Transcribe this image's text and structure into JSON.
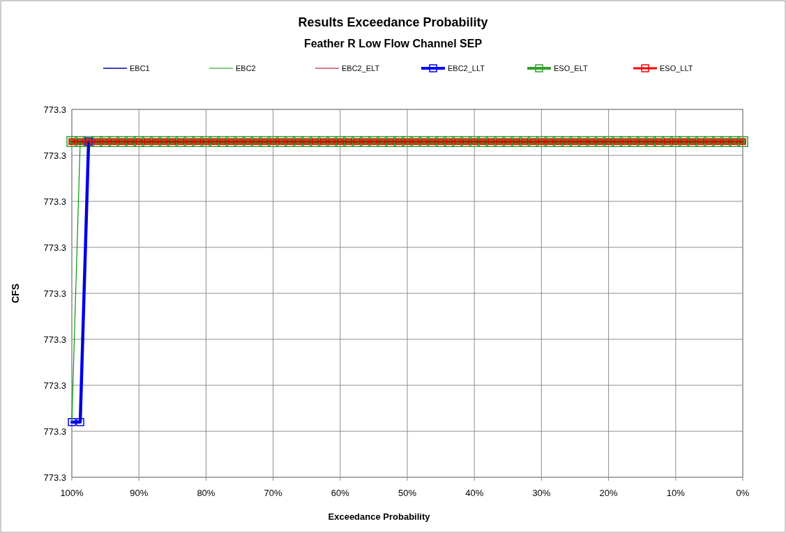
{
  "chart_data": {
    "type": "line",
    "title": "Results Exceedance Probability",
    "subtitle": "Feather R Low Flow Channel  SEP",
    "xlabel": "Exceedance Probability",
    "ylabel": "CFS",
    "xlim": [
      100,
      0
    ],
    "xticks": [
      {
        "value": 100,
        "label": "100%"
      },
      {
        "value": 90,
        "label": "90%"
      },
      {
        "value": 80,
        "label": "80%"
      },
      {
        "value": 70,
        "label": "70%"
      },
      {
        "value": 60,
        "label": "60%"
      },
      {
        "value": 50,
        "label": "50%"
      },
      {
        "value": 40,
        "label": "40%"
      },
      {
        "value": 30,
        "label": "30%"
      },
      {
        "value": 20,
        "label": "20%"
      },
      {
        "value": 10,
        "label": "10%"
      },
      {
        "value": 0,
        "label": "0%"
      }
    ],
    "ylim": [
      773.26,
      773.34
    ],
    "yticks": [
      {
        "value": 773.26,
        "label": "773.3"
      },
      {
        "value": 773.27,
        "label": "773.3"
      },
      {
        "value": 773.28,
        "label": "773.3"
      },
      {
        "value": 773.29,
        "label": "773.3"
      },
      {
        "value": 773.3,
        "label": "773.3"
      },
      {
        "value": 773.31,
        "label": "773.3"
      },
      {
        "value": 773.32,
        "label": "773.3"
      },
      {
        "value": 773.33,
        "label": "773.3"
      },
      {
        "value": 773.34,
        "label": "773.3"
      }
    ],
    "grid": true,
    "legend": "top",
    "series": [
      {
        "name": "EBC1",
        "color": "#0000b0",
        "x": [
          100,
          98.75,
          97.5
        ],
        "values": [
          773.272,
          773.272,
          773.333
        ]
      },
      {
        "name": "EBC2",
        "color": "#009900",
        "x": [
          100,
          98.75
        ],
        "values": [
          773.272,
          773.333
        ]
      },
      {
        "name": "EBC2_ELT",
        "color": "#b00000",
        "x": [
          100,
          0
        ],
        "values": [
          773.333,
          773.333
        ]
      },
      {
        "name": "EBC2_LLT",
        "color": "#0000ff",
        "marker": "square",
        "x": [
          100,
          98.75,
          97.5
        ],
        "values": [
          773.272,
          773.272,
          773.333
        ]
      },
      {
        "name": "ESO_ELT",
        "color": "#33a02c",
        "marker": "square",
        "x": [
          100,
          98.75,
          97.5,
          96.25,
          95,
          93.75,
          92.5,
          91.25,
          90,
          88.75,
          87.5,
          86.25,
          85,
          83.75,
          82.5,
          81.25,
          80,
          78.75,
          77.5,
          76.25,
          75,
          73.75,
          72.5,
          71.25,
          70,
          68.75,
          67.5,
          66.25,
          65,
          63.75,
          62.5,
          61.25,
          60,
          58.75,
          57.5,
          56.25,
          55,
          53.75,
          52.5,
          51.25,
          50,
          48.75,
          47.5,
          46.25,
          45,
          43.75,
          42.5,
          41.25,
          40,
          38.75,
          37.5,
          36.25,
          35,
          33.75,
          32.5,
          31.25,
          30,
          28.75,
          27.5,
          26.25,
          25,
          23.75,
          22.5,
          21.25,
          20,
          18.75,
          17.5,
          16.25,
          15,
          13.75,
          12.5,
          11.25,
          10,
          8.75,
          7.5,
          6.25,
          5,
          3.75,
          2.5,
          1.25,
          0
        ],
        "values": [
          773.333,
          773.333,
          773.333,
          773.333,
          773.333,
          773.333,
          773.333,
          773.333,
          773.333,
          773.333,
          773.333,
          773.333,
          773.333,
          773.333,
          773.333,
          773.333,
          773.333,
          773.333,
          773.333,
          773.333,
          773.333,
          773.333,
          773.333,
          773.333,
          773.333,
          773.333,
          773.333,
          773.333,
          773.333,
          773.333,
          773.333,
          773.333,
          773.333,
          773.333,
          773.333,
          773.333,
          773.333,
          773.333,
          773.333,
          773.333,
          773.333,
          773.333,
          773.333,
          773.333,
          773.333,
          773.333,
          773.333,
          773.333,
          773.333,
          773.333,
          773.333,
          773.333,
          773.333,
          773.333,
          773.333,
          773.333,
          773.333,
          773.333,
          773.333,
          773.333,
          773.333,
          773.333,
          773.333,
          773.333,
          773.333,
          773.333,
          773.333,
          773.333,
          773.333,
          773.333,
          773.333,
          773.333,
          773.333,
          773.333,
          773.333,
          773.333,
          773.333,
          773.333,
          773.333,
          773.333,
          773.333
        ]
      },
      {
        "name": "ESO_LLT",
        "color": "#ff0000",
        "marker": "square",
        "x": [
          100,
          98.75,
          97.5,
          96.25,
          95,
          93.75,
          92.5,
          91.25,
          90,
          88.75,
          87.5,
          86.25,
          85,
          83.75,
          82.5,
          81.25,
          80,
          78.75,
          77.5,
          76.25,
          75,
          73.75,
          72.5,
          71.25,
          70,
          68.75,
          67.5,
          66.25,
          65,
          63.75,
          62.5,
          61.25,
          60,
          58.75,
          57.5,
          56.25,
          55,
          53.75,
          52.5,
          51.25,
          50,
          48.75,
          47.5,
          46.25,
          45,
          43.75,
          42.5,
          41.25,
          40,
          38.75,
          37.5,
          36.25,
          35,
          33.75,
          32.5,
          31.25,
          30,
          28.75,
          27.5,
          26.25,
          25,
          23.75,
          22.5,
          21.25,
          20,
          18.75,
          17.5,
          16.25,
          15,
          13.75,
          12.5,
          11.25,
          10,
          8.75,
          7.5,
          6.25,
          5,
          3.75,
          2.5,
          1.25,
          0
        ],
        "values": [
          773.333,
          773.333,
          773.333,
          773.333,
          773.333,
          773.333,
          773.333,
          773.333,
          773.333,
          773.333,
          773.333,
          773.333,
          773.333,
          773.333,
          773.333,
          773.333,
          773.333,
          773.333,
          773.333,
          773.333,
          773.333,
          773.333,
          773.333,
          773.333,
          773.333,
          773.333,
          773.333,
          773.333,
          773.333,
          773.333,
          773.333,
          773.333,
          773.333,
          773.333,
          773.333,
          773.333,
          773.333,
          773.333,
          773.333,
          773.333,
          773.333,
          773.333,
          773.333,
          773.333,
          773.333,
          773.333,
          773.333,
          773.333,
          773.333,
          773.333,
          773.333,
          773.333,
          773.333,
          773.333,
          773.333,
          773.333,
          773.333,
          773.333,
          773.333,
          773.333,
          773.333,
          773.333,
          773.333,
          773.333,
          773.333,
          773.333,
          773.333,
          773.333,
          773.333,
          773.333,
          773.333,
          773.333,
          773.333,
          773.333,
          773.333,
          773.333,
          773.333,
          773.333,
          773.333,
          773.333,
          773.333
        ]
      }
    ]
  }
}
